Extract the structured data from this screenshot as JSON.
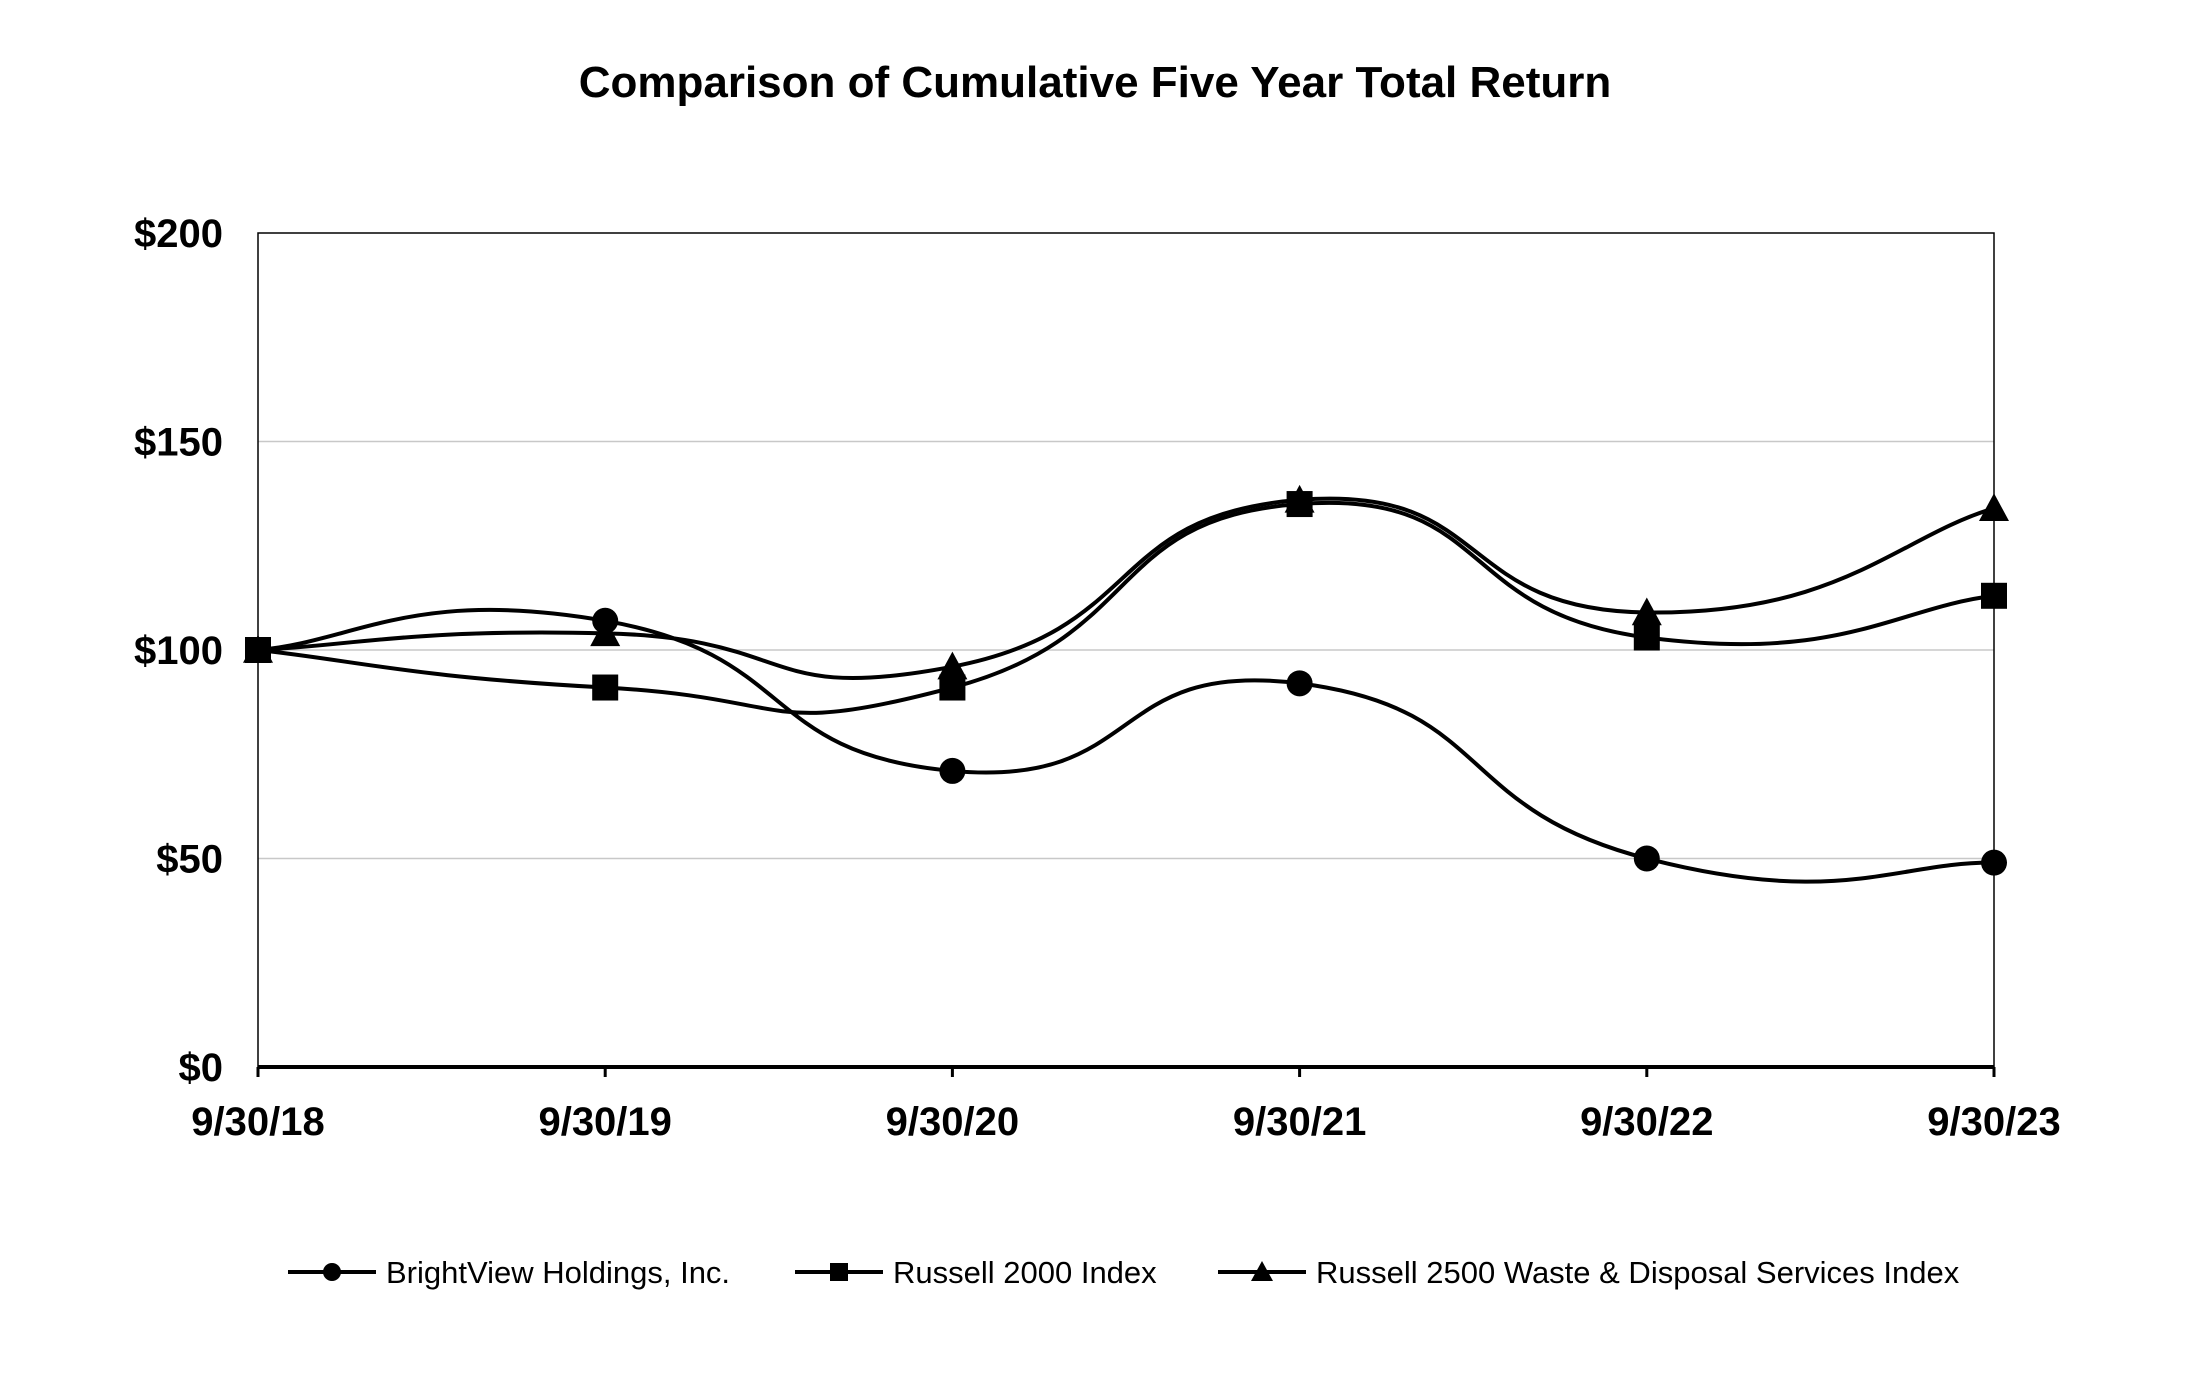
{
  "chart_data": {
    "type": "line",
    "title": "Comparison of Cumulative Five Year Total Return",
    "xlabel": "",
    "ylabel": "",
    "categories": [
      "9/30/18",
      "9/30/19",
      "9/30/20",
      "9/30/21",
      "9/30/22",
      "9/30/23"
    ],
    "y_ticks": [
      "$0",
      "$50",
      "$100",
      "$150",
      "$200"
    ],
    "y_tick_values": [
      0,
      50,
      100,
      150,
      200
    ],
    "ylim": [
      0,
      200
    ],
    "grid": "horizontal",
    "legend_position": "bottom",
    "series": [
      {
        "name": "BrightView Holdings, Inc.",
        "marker": "circle",
        "values": [
          100,
          107,
          71,
          92,
          50,
          49
        ]
      },
      {
        "name": "Russell 2000 Index",
        "marker": "square",
        "values": [
          100,
          91,
          91,
          135,
          103,
          113
        ]
      },
      {
        "name": "Russell 2500 Waste & Disposal Services Index",
        "marker": "triangle",
        "values": [
          100,
          104,
          96,
          136,
          109,
          134
        ]
      }
    ],
    "colors": {
      "line": "#000000",
      "grid": "#c8c8c8",
      "axis": "#000000"
    }
  }
}
